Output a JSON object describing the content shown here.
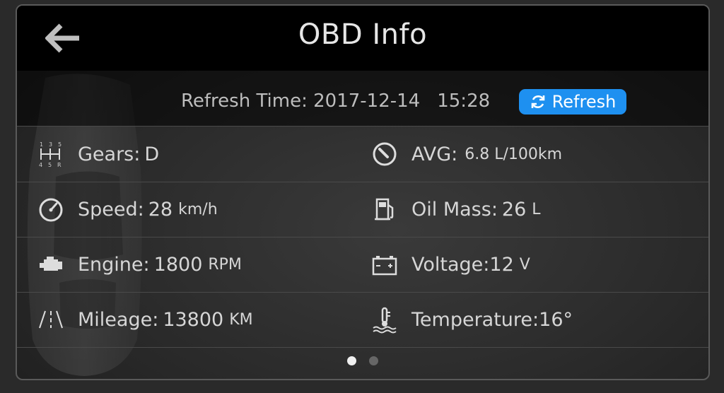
{
  "header": {
    "title": "OBD Info",
    "back_icon": "back-arrow-icon"
  },
  "refresh": {
    "label": "Refresh Time:",
    "date": "2017-12-14",
    "time": "15:28",
    "button_label": "Refresh",
    "button_color": "#1e90f0"
  },
  "items": [
    {
      "label": "Gears",
      "separator": " : ",
      "value": "D",
      "unit": "",
      "icon": "gear-shift-icon"
    },
    {
      "label": "AVG",
      "separator": " : ",
      "value": "6.8 L/100km",
      "unit": "",
      "icon": "fuel-gauge-icon"
    },
    {
      "label": "Speed",
      "separator": " : ",
      "value": "28",
      "unit": "km/h",
      "icon": "speedometer-icon"
    },
    {
      "label": "Oil Mass",
      "separator": " : ",
      "value": "26",
      "unit": "L",
      "icon": "fuel-pump-icon"
    },
    {
      "label": "Engine",
      "separator": " : ",
      "value": "1800",
      "unit": "RPM",
      "icon": "engine-icon"
    },
    {
      "label": "Voltage",
      "separator": " : ",
      "value": "12",
      "unit": "V",
      "icon": "battery-icon"
    },
    {
      "label": "Mileage",
      "separator": " : ",
      "value": "13800",
      "unit": "KM",
      "icon": "road-icon"
    },
    {
      "label": "Temperature",
      "separator": " : ",
      "value": "16°",
      "unit": "",
      "icon": "coolant-temperature-icon"
    }
  ],
  "pagination": {
    "pages": 2,
    "current": 1
  }
}
